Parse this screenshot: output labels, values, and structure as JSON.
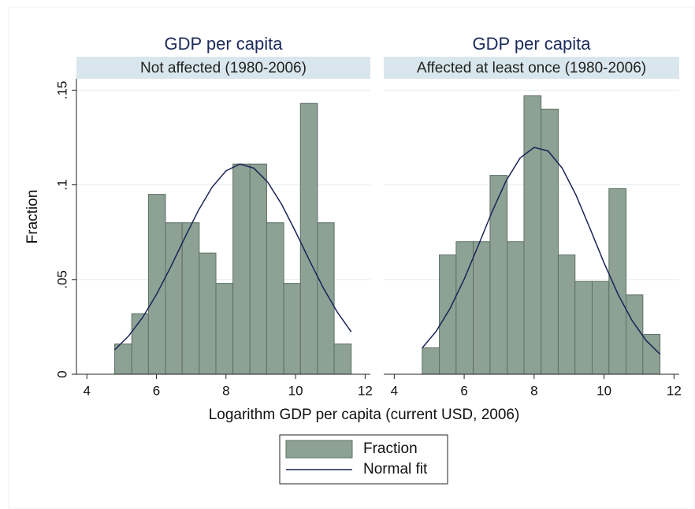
{
  "chart_data": [
    {
      "type": "histogram",
      "title": "GDP per capita",
      "subtitle": "Not affected (1980-2006)",
      "bins": [
        4.8,
        5.29,
        5.77,
        6.26,
        6.74,
        7.23,
        7.71,
        8.2,
        8.69,
        9.17,
        9.66,
        10.14,
        10.63,
        11.11,
        11.6
      ],
      "values": [
        0.016,
        0.032,
        0.095,
        0.08,
        0.08,
        0.064,
        0.048,
        0.111,
        0.111,
        0.08,
        0.048,
        0.143,
        0.08,
        0.016
      ],
      "color": "#8da195",
      "fit": {
        "x": [
          4.8,
          5.2,
          5.6,
          6.0,
          6.4,
          6.8,
          7.2,
          7.6,
          8.0,
          8.4,
          8.8,
          9.2,
          9.6,
          10.0,
          10.4,
          10.8,
          11.2,
          11.6
        ],
        "y": [
          0.0129,
          0.0202,
          0.0299,
          0.0421,
          0.0563,
          0.0715,
          0.0863,
          0.0988,
          0.1074,
          0.111,
          0.1088,
          0.1014,
          0.0897,
          0.0753,
          0.0601,
          0.0455,
          0.0328,
          0.0224
        ],
        "color": "#1a2456"
      },
      "xlim": [
        3.7,
        12.15
      ],
      "xticks": [
        4,
        6,
        8,
        10,
        12
      ],
      "ylim": [
        0,
        0.156
      ],
      "yticks": [
        {
          "value": 0,
          "label": "0"
        },
        {
          "value": 0.05,
          "label": ".05"
        },
        {
          "value": 0.1,
          "label": ".1"
        },
        {
          "value": 0.15,
          "label": ".15"
        }
      ],
      "ytick_labels": true,
      "grid": true
    },
    {
      "type": "histogram",
      "title": "GDP per capita",
      "subtitle": "Affected at least once (1980-2006)",
      "bins": [
        4.8,
        5.29,
        5.77,
        6.26,
        6.74,
        7.23,
        7.71,
        8.2,
        8.69,
        9.17,
        9.66,
        10.14,
        10.63,
        11.11,
        11.6
      ],
      "values": [
        0.014,
        0.063,
        0.07,
        0.07,
        0.105,
        0.07,
        0.147,
        0.14,
        0.063,
        0.049,
        0.049,
        0.098,
        0.042,
        0.021
      ],
      "color": "#8da195",
      "fit": {
        "x": [
          4.8,
          5.2,
          5.6,
          6.0,
          6.4,
          6.8,
          7.2,
          7.6,
          8.0,
          8.4,
          8.8,
          9.2,
          9.6,
          10.0,
          10.4,
          10.8,
          11.2,
          11.6
        ],
        "y": [
          0.0139,
          0.0227,
          0.0349,
          0.0502,
          0.0678,
          0.0859,
          0.1022,
          0.1142,
          0.1198,
          0.1179,
          0.1089,
          0.0945,
          0.0769,
          0.0588,
          0.0422,
          0.0284,
          0.0179,
          0.0106
        ],
        "color": "#1a2456"
      },
      "xlim": [
        3.7,
        12.15
      ],
      "xticks": [
        4,
        6,
        8,
        10,
        12
      ],
      "ylim": [
        0,
        0.156
      ],
      "yticks": [
        0,
        0.05,
        0.1,
        0.15
      ],
      "ytick_labels": false,
      "grid": true
    }
  ],
  "ylabel": "Fraction",
  "xlabel": "Logarithm GDP per capita (current USD, 2006)",
  "legend": {
    "position": "bottom",
    "entries": [
      {
        "name": "Fraction",
        "color": "#8da195",
        "kind": "bar"
      },
      {
        "name": "Normal fit",
        "color": "#1a2456",
        "kind": "line"
      }
    ]
  }
}
